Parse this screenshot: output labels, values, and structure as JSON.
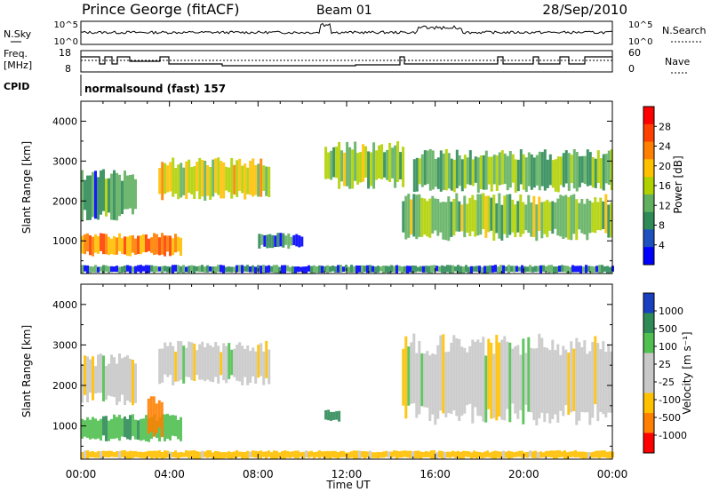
{
  "header": {
    "station": "Prince George (fitACF)",
    "beam": "Beam 01",
    "date": "28/Sep/2010"
  },
  "noise_panel": {
    "left_label": "N.Sky",
    "right_label": "N.Search",
    "left_ticks": [
      "10^5",
      "10^0"
    ],
    "right_ticks": [
      "10^5",
      "10^0"
    ]
  },
  "freq_panel": {
    "left_label_1": "Freq.",
    "left_label_2": "[MHz]",
    "right_label": "Nave",
    "left_ticks": [
      "18",
      "8"
    ],
    "right_ticks": [
      "60",
      "0"
    ]
  },
  "cpid": {
    "label": "CPID",
    "program": "normalsound (fast) 157"
  },
  "chart_data": [
    {
      "type": "heatmap",
      "name": "power",
      "ylabel": "Slant Range [km]",
      "ylim": [
        180,
        4500
      ],
      "y_ticks": [
        1000,
        2000,
        3000,
        4000
      ],
      "colorbar_label": "Power [dB]",
      "colorbar_ticks": [
        "28",
        "24",
        "20",
        "16",
        "12",
        "8",
        "4"
      ],
      "colorbar_colors": [
        "#ff0000",
        "#ff4000",
        "#ff8000",
        "#ffc000",
        "#b0d000",
        "#60b060",
        "#2e8b57",
        "#1e50c0",
        "#0000ff"
      ],
      "regions": [
        {
          "x": [
            0.0,
            4.5
          ],
          "y": [
            600,
            1200
          ],
          "value": 22
        },
        {
          "x": [
            0.0,
            2.5
          ],
          "y": [
            1500,
            2800
          ],
          "value": 8
        },
        {
          "x": [
            3.5,
            8.5
          ],
          "y": [
            2000,
            3100
          ],
          "value": 16
        },
        {
          "x": [
            8.0,
            10.0
          ],
          "y": [
            800,
            1200
          ],
          "value": 6
        },
        {
          "x": [
            14.5,
            24.0
          ],
          "y": [
            1000,
            2200
          ],
          "value": 12
        },
        {
          "x": [
            15.0,
            24.0
          ],
          "y": [
            2200,
            3300
          ],
          "value": 10
        },
        {
          "x": [
            11.0,
            14.5
          ],
          "y": [
            2300,
            3500
          ],
          "value": 12
        },
        {
          "x": [
            0.0,
            24.0
          ],
          "y": [
            180,
            400
          ],
          "value": 6
        }
      ]
    },
    {
      "type": "heatmap",
      "name": "velocity",
      "ylabel": "Slant Range [km]",
      "ylim": [
        180,
        4500
      ],
      "y_ticks": [
        1000,
        2000,
        3000,
        4000
      ],
      "colorbar_label": "Velocity [m s⁻¹]",
      "colorbar_ticks": [
        "1000",
        "500",
        "100",
        "25",
        "-25",
        "-100",
        "-500",
        "-1000"
      ],
      "colorbar_colors": [
        "#1840c0",
        "#2e8b57",
        "#50c050",
        "#c8c8c8",
        "#c8c8c8",
        "#ffc000",
        "#ff8000",
        "#ff0000"
      ],
      "regions": [
        {
          "x": [
            0.0,
            4.5
          ],
          "y": [
            600,
            1300
          ],
          "value": 80
        },
        {
          "x": [
            3.0,
            3.7
          ],
          "y": [
            700,
            1800
          ],
          "value": -300
        },
        {
          "x": [
            0.0,
            2.5
          ],
          "y": [
            1500,
            2800
          ],
          "value": 0
        },
        {
          "x": [
            3.5,
            8.5
          ],
          "y": [
            2000,
            3100
          ],
          "value": 0
        },
        {
          "x": [
            14.5,
            24.0
          ],
          "y": [
            1000,
            3300
          ],
          "value": 0
        },
        {
          "x": [
            11.0,
            11.7
          ],
          "y": [
            1100,
            1400
          ],
          "value": 300
        },
        {
          "x": [
            0.0,
            24.0
          ],
          "y": [
            180,
            400
          ],
          "value": -50
        }
      ]
    }
  ],
  "x_axis": {
    "label": "Time UT",
    "ticks": [
      "00:00",
      "04:00",
      "08:00",
      "12:00",
      "16:00",
      "20:00",
      "00:00"
    ]
  }
}
